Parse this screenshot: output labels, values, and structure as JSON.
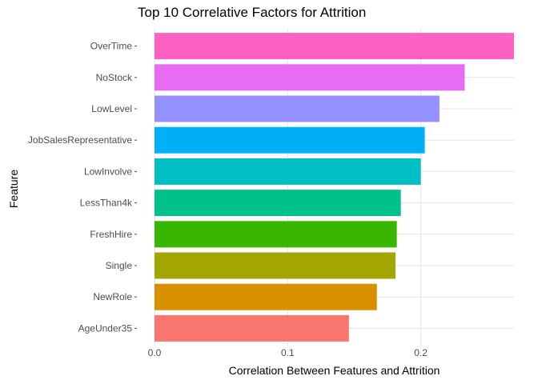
{
  "chart_data": {
    "type": "bar",
    "orientation": "horizontal",
    "title": "Top 10 Correlative Factors for Attrition",
    "xlabel": "Correlation Between Features and Attrition",
    "ylabel": "Feature",
    "xlim": [
      0,
      0.27
    ],
    "x_ticks": [
      "0.0",
      "0.1",
      "0.2"
    ],
    "grid": true,
    "legend": "none",
    "categories": [
      "OverTime",
      "NoStock",
      "LowLevel",
      "JobSalesRepresentative",
      "LowInvolve",
      "LessThan4k",
      "FreshHire",
      "Single",
      "NewRole",
      "AgeUnder35"
    ],
    "values": [
      0.27,
      0.233,
      0.214,
      0.203,
      0.2,
      0.185,
      0.182,
      0.181,
      0.167,
      0.146
    ],
    "colors": [
      "#FF61C3",
      "#E76BF3",
      "#9590FF",
      "#00B0F6",
      "#00BFC4",
      "#00C08B",
      "#39B600",
      "#A3A500",
      "#D89000",
      "#F8766D"
    ]
  }
}
